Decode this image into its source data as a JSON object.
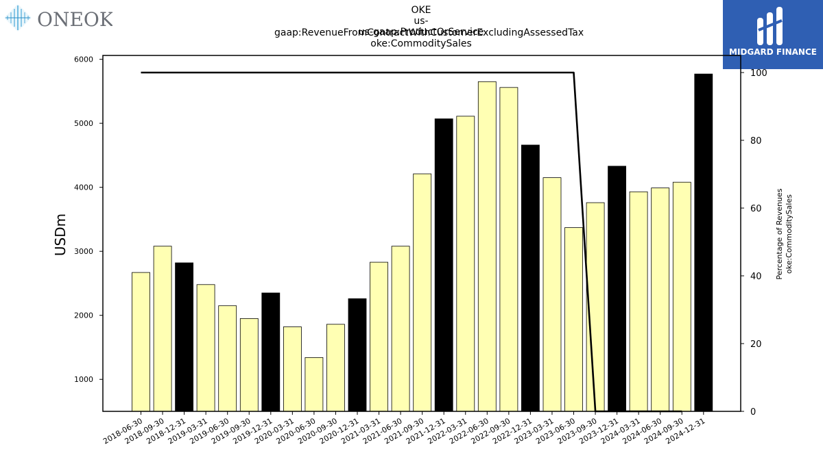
{
  "brand": {
    "company_logo_text": "ONEOK",
    "sponsor_logo_text": "MIDGARD FINANCE"
  },
  "chart_data": {
    "type": "bar",
    "title_lines": [
      "OKE",
      "us-gaap:RevenueFromContractWithCustomerExcludingAssessedTax",
      "us-gaap:ProductOrService",
      "oke:CommoditySales"
    ],
    "ylabel": "USDm",
    "ylabel_right": [
      "Percentage of Revenues",
      "oke:CommoditySales"
    ],
    "ylim": [
      500,
      6060
    ],
    "ylim_right": [
      0,
      100
    ],
    "yticks": [
      1000,
      2000,
      3000,
      4000,
      5000,
      6000
    ],
    "yticks_right": [
      0,
      20,
      40,
      60,
      80,
      100
    ],
    "categories": [
      "2018-06-30",
      "2018-09-30",
      "2018-12-31",
      "2019-03-31",
      "2019-06-30",
      "2019-09-30",
      "2019-12-31",
      "2020-03-31",
      "2020-06-30",
      "2020-09-30",
      "2020-12-31",
      "2021-03-31",
      "2021-06-30",
      "2021-09-30",
      "2021-12-31",
      "2022-03-31",
      "2022-06-30",
      "2022-09-30",
      "2022-12-31",
      "2023-03-31",
      "2023-06-30",
      "2023-09-30",
      "2023-12-31",
      "2024-03-31",
      "2024-06-30",
      "2024-09-30",
      "2024-12-31"
    ],
    "values": [
      2670,
      3080,
      2820,
      2480,
      2150,
      1950,
      2350,
      1820,
      1340,
      1860,
      2260,
      2830,
      3080,
      4210,
      5070,
      5110,
      5650,
      5560,
      4660,
      4150,
      3370,
      3760,
      4330,
      3930,
      3990,
      4080,
      5770
    ],
    "annual": [
      false,
      false,
      true,
      false,
      false,
      false,
      true,
      false,
      false,
      false,
      true,
      false,
      false,
      false,
      true,
      false,
      false,
      false,
      true,
      false,
      false,
      false,
      true,
      false,
      false,
      false,
      true
    ],
    "percentage_series": [
      100,
      100,
      null,
      100,
      100,
      100,
      null,
      100,
      100,
      100,
      null,
      100,
      100,
      100,
      null,
      100,
      100,
      100,
      null,
      100,
      100,
      0,
      null,
      0,
      0,
      0,
      null
    ],
    "colors": {
      "quarter_bar": "#ffffb3",
      "annual_bar": "#000000",
      "line": "#000000"
    },
    "grid": false
  }
}
